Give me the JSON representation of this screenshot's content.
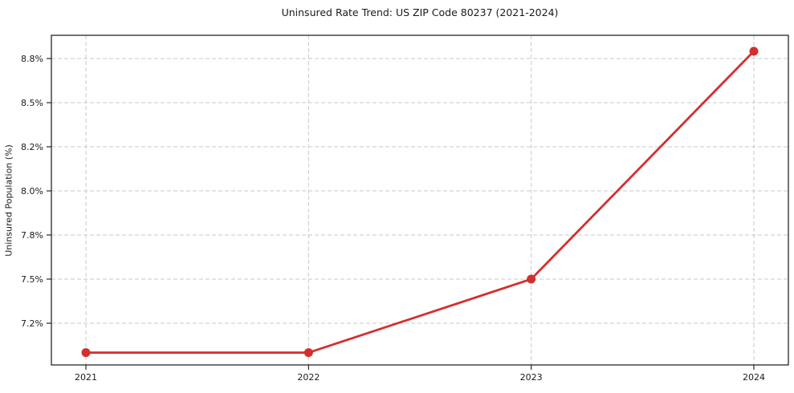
{
  "chart_data": {
    "type": "line",
    "title": "Uninsured Rate Trend: US ZIP Code 80237 (2021-2024)",
    "xlabel": "",
    "ylabel": "Uninsured Population (%)",
    "categories": [
      "2021",
      "2022",
      "2023",
      "2024"
    ],
    "values": [
      7.0,
      7.0,
      7.5,
      8.85
    ],
    "y_tick_values": [
      7.2,
      7.5,
      7.8,
      8.0,
      8.2,
      8.5,
      8.8
    ],
    "y_tick_labels": [
      "7.2%",
      "7.5%",
      "7.8%",
      "8.0%",
      "8.2%",
      "8.5%",
      "8.8%"
    ],
    "x_tick_labels": [
      "2021",
      "2022",
      "2023",
      "2024"
    ],
    "grid": true,
    "grid_style": "dashed",
    "y_ticks_evenly_spaced": true,
    "legend_position": "none",
    "line_color": "#d32f2f",
    "marker": "circle",
    "grid_color": "#c9c9c9",
    "spine_color": "#262626",
    "text_color": "#1a1a1a",
    "background_color": "#ffffff"
  }
}
